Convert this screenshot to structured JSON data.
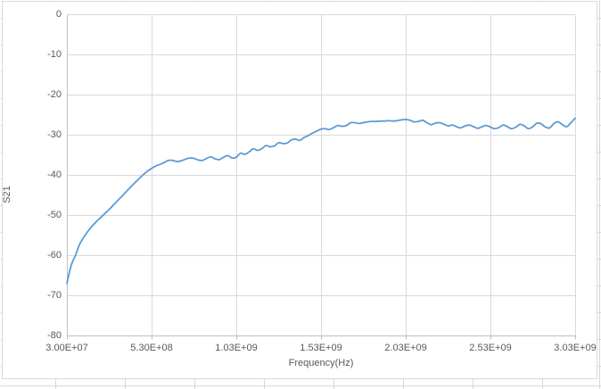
{
  "colors": {
    "background": "#FFFFFF",
    "series_line": "#5B9BD5",
    "chart_gridline": "#D9D9D9",
    "axis_line": "#BFBFBF",
    "tick_label_text": "#595959",
    "axis_title_text": "#595959",
    "chart_border": "#D9D9D9",
    "sheet_gridline": "#D8D8D8"
  },
  "chart_data": {
    "type": "line",
    "title": "",
    "xlabel": "Frequency(Hz)",
    "ylabel": "S21",
    "x_unit": "GHz",
    "xlim_ghz": [
      0.03,
      3.03
    ],
    "ylim_db": [
      -80,
      0
    ],
    "grid": true,
    "legend": "none",
    "x_ticks": [
      {
        "value_ghz": 0.03,
        "label": "3.00E+07"
      },
      {
        "value_ghz": 0.53,
        "label": "5.30E+08"
      },
      {
        "value_ghz": 1.03,
        "label": "1.03E+09"
      },
      {
        "value_ghz": 1.53,
        "label": "1.53E+09"
      },
      {
        "value_ghz": 2.03,
        "label": "2.03E+09"
      },
      {
        "value_ghz": 2.53,
        "label": "2.53E+09"
      },
      {
        "value_ghz": 3.03,
        "label": "3.03E+09"
      }
    ],
    "y_ticks": [
      {
        "value_db": 0,
        "label": "0"
      },
      {
        "value_db": -10,
        "label": "-10"
      },
      {
        "value_db": -20,
        "label": "-20"
      },
      {
        "value_db": -30,
        "label": "-30"
      },
      {
        "value_db": -40,
        "label": "-40"
      },
      {
        "value_db": -50,
        "label": "-50"
      },
      {
        "value_db": -60,
        "label": "-60"
      },
      {
        "value_db": -70,
        "label": "-70"
      },
      {
        "value_db": -80,
        "label": "-80"
      }
    ],
    "series": [
      {
        "name": "S21",
        "color": "#5B9BD5",
        "width": 1.8,
        "x_ghz": [
          0.03,
          0.055,
          0.08,
          0.105,
          0.13,
          0.155,
          0.18,
          0.205,
          0.23,
          0.255,
          0.28,
          0.305,
          0.33,
          0.355,
          0.38,
          0.405,
          0.43,
          0.455,
          0.48,
          0.505,
          0.53,
          0.555,
          0.58,
          0.605,
          0.63,
          0.655,
          0.68,
          0.705,
          0.73,
          0.755,
          0.78,
          0.805,
          0.83,
          0.855,
          0.88,
          0.905,
          0.93,
          0.955,
          0.98,
          1.005,
          1.03,
          1.055,
          1.08,
          1.105,
          1.13,
          1.155,
          1.18,
          1.205,
          1.23,
          1.255,
          1.28,
          1.305,
          1.33,
          1.355,
          1.38,
          1.405,
          1.43,
          1.455,
          1.48,
          1.505,
          1.53,
          1.555,
          1.58,
          1.605,
          1.63,
          1.655,
          1.68,
          1.705,
          1.73,
          1.755,
          1.78,
          1.805,
          1.83,
          1.855,
          1.88,
          1.905,
          1.93,
          1.955,
          1.98,
          2.005,
          2.03,
          2.055,
          2.08,
          2.105,
          2.13,
          2.155,
          2.18,
          2.205,
          2.23,
          2.255,
          2.28,
          2.305,
          2.33,
          2.355,
          2.38,
          2.405,
          2.43,
          2.455,
          2.48,
          2.505,
          2.53,
          2.555,
          2.58,
          2.605,
          2.63,
          2.655,
          2.68,
          2.705,
          2.73,
          2.755,
          2.78,
          2.805,
          2.83,
          2.855,
          2.88,
          2.905,
          2.93,
          2.955,
          2.98,
          3.005,
          3.03
        ],
        "y_db": [
          -67.0,
          -62.6,
          -60.1,
          -57.3,
          -55.5,
          -54.0,
          -52.7,
          -51.6,
          -50.6,
          -49.6,
          -48.6,
          -47.5,
          -46.4,
          -45.3,
          -44.2,
          -43.1,
          -42.0,
          -41.0,
          -40.0,
          -39.1,
          -38.4,
          -37.8,
          -37.4,
          -36.9,
          -36.4,
          -36.4,
          -36.7,
          -36.5,
          -36.1,
          -35.8,
          -35.9,
          -36.3,
          -36.4,
          -35.9,
          -35.5,
          -36.0,
          -36.2,
          -35.6,
          -35.2,
          -35.8,
          -35.6,
          -34.6,
          -34.9,
          -34.3,
          -33.5,
          -33.9,
          -33.5,
          -32.7,
          -33.0,
          -32.8,
          -32.0,
          -32.2,
          -32.1,
          -31.3,
          -31.1,
          -31.4,
          -30.7,
          -30.2,
          -29.6,
          -29.1,
          -28.6,
          -28.5,
          -28.7,
          -28.2,
          -27.7,
          -27.9,
          -27.7,
          -27.0,
          -27.0,
          -27.2,
          -27.0,
          -26.8,
          -26.7,
          -26.7,
          -26.6,
          -26.6,
          -26.5,
          -26.6,
          -26.5,
          -26.3,
          -26.2,
          -26.4,
          -26.8,
          -26.7,
          -26.4,
          -27.0,
          -27.5,
          -27.1,
          -27.0,
          -27.4,
          -27.8,
          -27.6,
          -28.0,
          -28.3,
          -27.8,
          -27.6,
          -28.0,
          -28.4,
          -28.0,
          -27.7,
          -28.1,
          -28.5,
          -28.2,
          -27.6,
          -28.0,
          -28.5,
          -28.1,
          -27.4,
          -27.8,
          -28.5,
          -28.0,
          -27.1,
          -27.3,
          -28.1,
          -28.3,
          -27.2,
          -26.8,
          -27.5,
          -28.0,
          -27.0,
          -25.9
        ]
      }
    ]
  }
}
